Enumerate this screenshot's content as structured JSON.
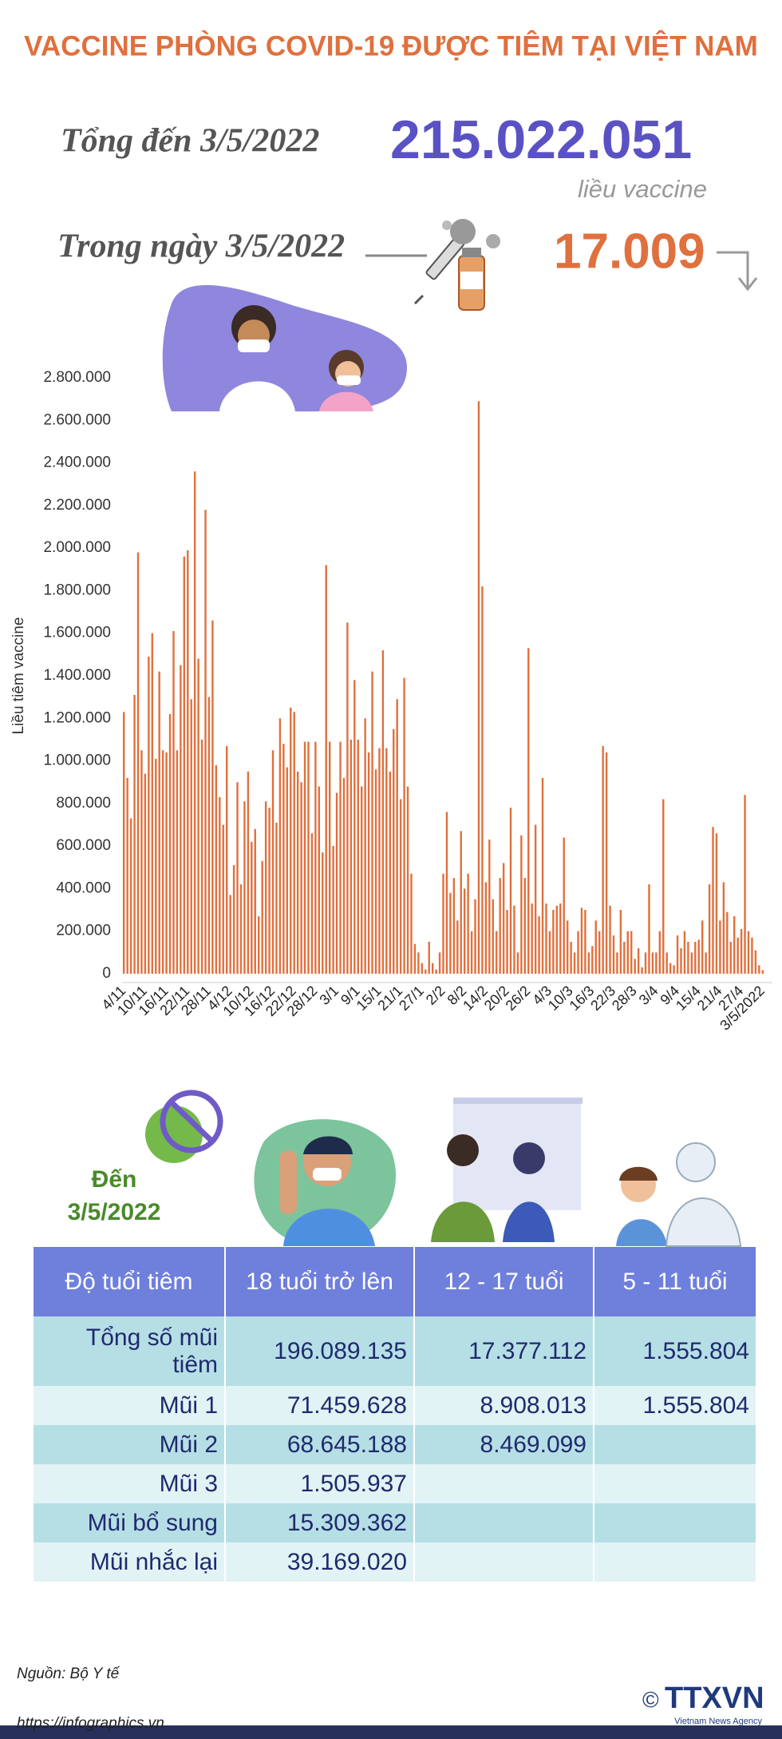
{
  "header": {
    "title": "VACCINE PHÒNG COVID-19 ĐƯỢC TIÊM TẠI VIỆT NAM",
    "total_label": "Tổng đến 3/5/2022",
    "total_value": "215.022.051",
    "total_unit": "liều vaccine",
    "daily_label": "Trong ngày 3/5/2022",
    "daily_value": "17.009"
  },
  "chart_data": {
    "type": "bar",
    "ylabel": "Liều tiêm vaccine",
    "color": "#e0703d",
    "grid": false,
    "ylim": [
      0,
      2800000
    ],
    "yticks": [
      0,
      {
        "value": 200000,
        "label": "200.000"
      },
      {
        "value": 400000,
        "label": "400.000"
      },
      {
        "value": 600000,
        "label": "600.000"
      },
      {
        "value": 800000,
        "label": "800.000"
      },
      {
        "value": 1000000,
        "label": "1.000.000"
      },
      {
        "value": 1200000,
        "label": "1.200.000"
      },
      {
        "value": 1400000,
        "label": "1.400.000"
      },
      {
        "value": 1600000,
        "label": "1.600.000"
      },
      {
        "value": 1800000,
        "label": "1.800.000"
      },
      {
        "value": 2000000,
        "label": "2.000.000"
      },
      {
        "value": 2200000,
        "label": "2.200.000"
      },
      {
        "value": 2400000,
        "label": "2.400.000"
      },
      {
        "value": 2600000,
        "label": "2.600.000"
      },
      {
        "value": 2800000,
        "label": "2.800.000"
      }
    ],
    "categories": [
      "4/11",
      null,
      null,
      null,
      null,
      null,
      "10/11",
      null,
      null,
      null,
      null,
      null,
      "16/11",
      null,
      null,
      null,
      null,
      null,
      "22/11",
      null,
      null,
      null,
      null,
      null,
      "28/11",
      null,
      null,
      null,
      null,
      null,
      "4/12",
      null,
      null,
      null,
      null,
      null,
      "10/12",
      null,
      null,
      null,
      null,
      null,
      "16/12",
      null,
      null,
      null,
      null,
      null,
      "22/12",
      null,
      null,
      null,
      null,
      null,
      "28/12",
      null,
      null,
      null,
      null,
      null,
      "3/1",
      null,
      null,
      null,
      null,
      null,
      "9/1",
      null,
      null,
      null,
      null,
      null,
      "15/1",
      null,
      null,
      null,
      null,
      null,
      "21/1",
      null,
      null,
      null,
      null,
      null,
      "27/1",
      null,
      null,
      null,
      null,
      null,
      "2/2",
      null,
      null,
      null,
      null,
      null,
      "8/2",
      null,
      null,
      null,
      null,
      null,
      "14/2",
      null,
      null,
      null,
      null,
      null,
      "20/2",
      null,
      null,
      null,
      null,
      null,
      "26/2",
      null,
      null,
      null,
      null,
      null,
      "4/3",
      null,
      null,
      null,
      null,
      null,
      "10/3",
      null,
      null,
      null,
      null,
      null,
      "16/3",
      null,
      null,
      null,
      null,
      null,
      "22/3",
      null,
      null,
      null,
      null,
      null,
      "28/3",
      null,
      null,
      null,
      null,
      null,
      "3/4",
      null,
      null,
      null,
      null,
      null,
      "9/4",
      null,
      null,
      null,
      null,
      null,
      "15/4",
      null,
      null,
      null,
      null,
      null,
      "21/4",
      null,
      null,
      null,
      null,
      null,
      "27/4",
      null,
      null,
      null,
      null,
      null,
      "3/5/2022"
    ],
    "values": [
      1230000,
      920000,
      730000,
      1310000,
      1980000,
      1050000,
      940000,
      1490000,
      1600000,
      1010000,
      1420000,
      1050000,
      1040000,
      1220000,
      1610000,
      1050000,
      1450000,
      1960000,
      1990000,
      1290000,
      2360000,
      1480000,
      1100000,
      2180000,
      1300000,
      1660000,
      980000,
      830000,
      700000,
      1070000,
      370000,
      510000,
      900000,
      420000,
      810000,
      950000,
      620000,
      680000,
      270000,
      530000,
      810000,
      780000,
      1050000,
      710000,
      1200000,
      1080000,
      970000,
      1250000,
      1230000,
      950000,
      900000,
      1090000,
      1090000,
      660000,
      1090000,
      880000,
      570000,
      1920000,
      1090000,
      600000,
      850000,
      1090000,
      920000,
      1650000,
      1100000,
      1380000,
      1100000,
      880000,
      1200000,
      1040000,
      1420000,
      960000,
      1060000,
      1520000,
      1060000,
      950000,
      1150000,
      1290000,
      820000,
      1390000,
      880000,
      470000,
      140000,
      100000,
      50000,
      20000,
      150000,
      50000,
      20000,
      100000,
      470000,
      760000,
      380000,
      450000,
      250000,
      670000,
      400000,
      470000,
      200000,
      350000,
      2690000,
      1820000,
      430000,
      630000,
      350000,
      200000,
      450000,
      520000,
      300000,
      780000,
      320000,
      100000,
      650000,
      450000,
      1530000,
      330000,
      700000,
      270000,
      920000,
      330000,
      200000,
      300000,
      320000,
      330000,
      640000,
      250000,
      150000,
      100000,
      200000,
      310000,
      300000,
      100000,
      130000,
      250000,
      200000,
      1070000,
      1040000,
      320000,
      180000,
      100000,
      300000,
      150000,
      200000,
      200000,
      70000,
      120000,
      30000,
      100000,
      420000,
      100000,
      100000,
      200000,
      820000,
      100000,
      50000,
      40000,
      180000,
      120000,
      200000,
      150000,
      100000,
      150000,
      160000,
      250000,
      100000,
      420000,
      690000,
      660000,
      250000,
      430000,
      290000,
      150000,
      270000,
      170000,
      210000,
      840000,
      200000,
      170000,
      110000,
      40000,
      17009
    ]
  },
  "as_of_lines": [
    "Đến",
    "3/5/2022"
  ],
  "table": {
    "header": [
      "Độ tuổi tiêm",
      "18 tuổi trở lên",
      "12 - 17 tuổi",
      "5 - 11 tuổi"
    ],
    "rows": [
      [
        "Tổng số mũi tiêm",
        "196.089.135",
        "17.377.112",
        "1.555.804"
      ],
      [
        "Mũi 1",
        "71.459.628",
        "8.908.013",
        "1.555.804"
      ],
      [
        "Mũi 2",
        "68.645.188",
        "8.469.099"
      ],
      [
        "Mũi 3",
        "1.505.937"
      ],
      [
        "Mũi bổ sung",
        "15.309.362"
      ],
      [
        "Mũi nhắc lại",
        "39.169.020"
      ]
    ]
  },
  "footer": {
    "source": "Nguồn: Bộ Y tế",
    "url": "https://infographics.vn",
    "copyright": "©",
    "logo": "TTXVN",
    "logo_sub": "Vietnam News Agency"
  }
}
